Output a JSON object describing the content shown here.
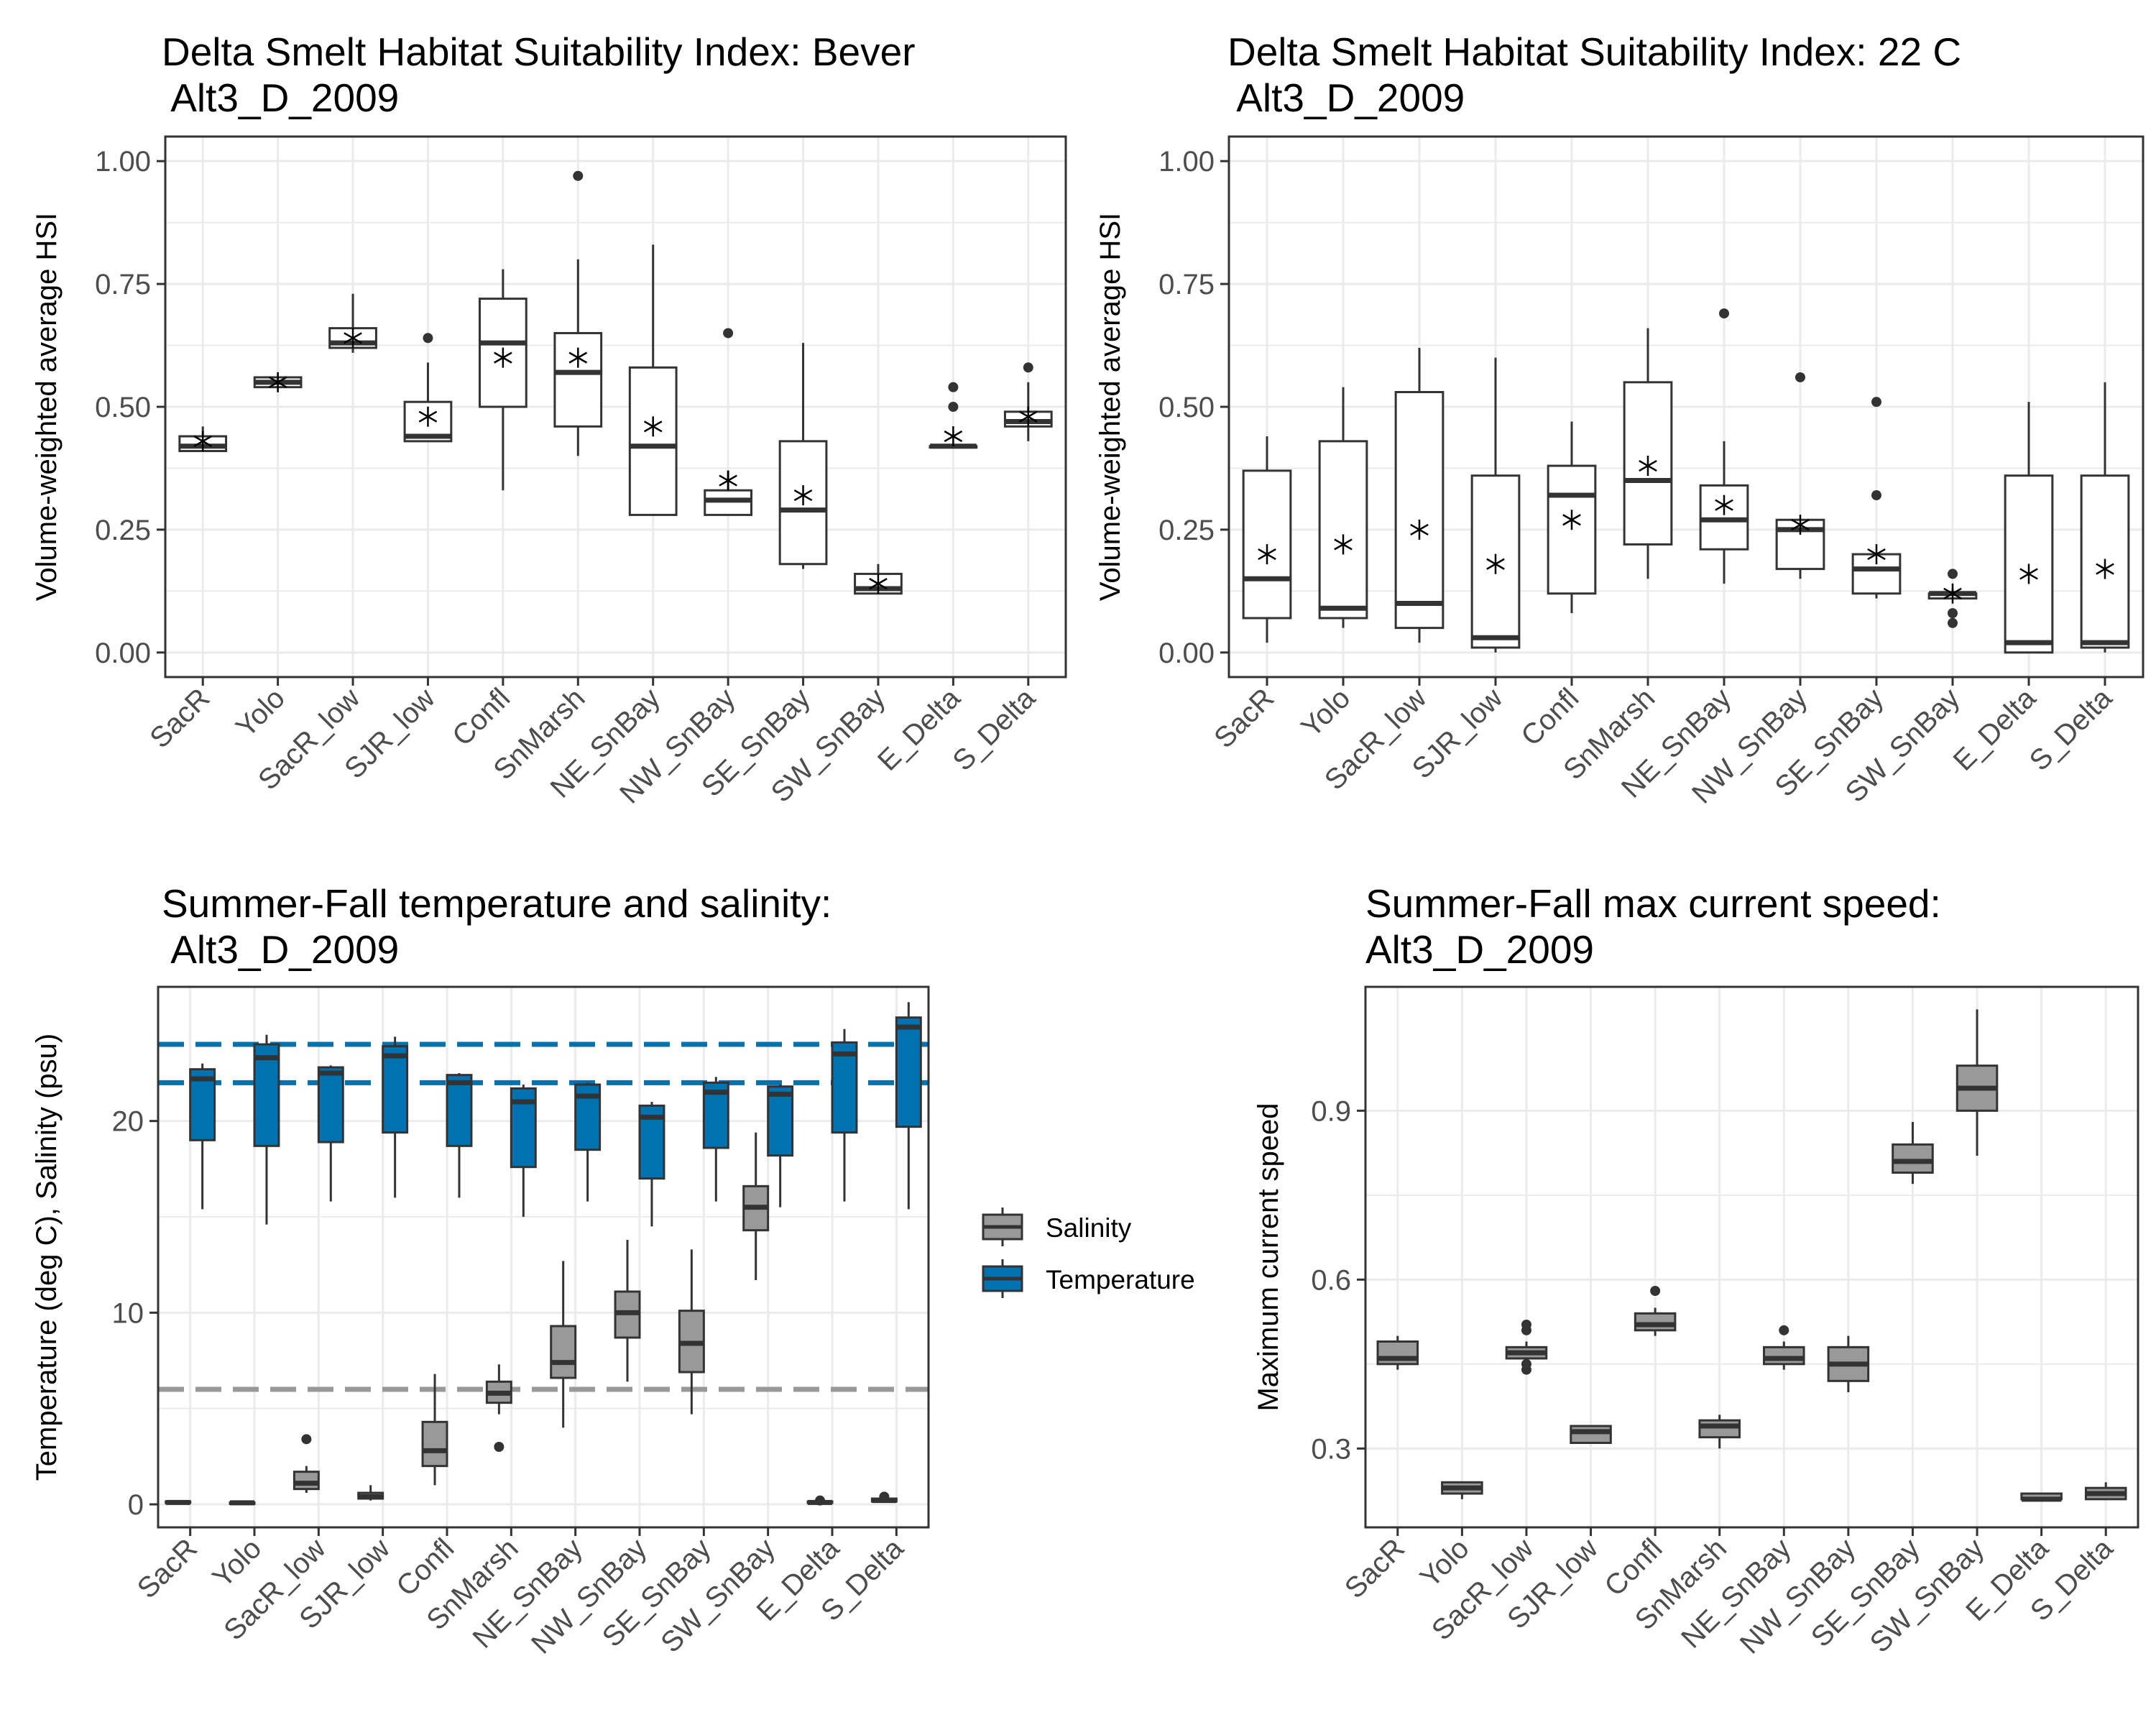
{
  "panels": {
    "p1": {
      "title_line1": "Delta Smelt Habitat Suitability Index: Bever",
      "title_line2": " Alt3_D_2009"
    },
    "p2": {
      "title_line1": "Delta Smelt Habitat Suitability Index: 22 C",
      "title_line2": " Alt3_D_2009"
    },
    "p3": {
      "title_line1": "Summer-Fall temperature and salinity:",
      "title_line2": " Alt3_D_2009"
    },
    "p4": {
      "title_line1": "Summer-Fall max current speed:",
      "title_line2": "Alt3_D_2009"
    }
  },
  "legend": {
    "salinity": "Salinity",
    "temperature": "Temperature"
  },
  "colors": {
    "temperature": "#0072B2",
    "salinity": "#999999",
    "grid": "#EBEBEB",
    "box_outline": "#333333"
  },
  "chart_data": [
    {
      "type": "box",
      "title": "Delta Smelt Habitat Suitability Index: Bever\n Alt3_D_2009",
      "ylabel": "Volume-weighted average HSI",
      "ylim": [
        -0.05,
        1.05
      ],
      "yticks": [
        "0.00",
        "0.25",
        "0.50",
        "0.75",
        "1.00"
      ],
      "categories": [
        "SacR",
        "Yolo",
        "SacR_low",
        "SJR_low",
        "Confl",
        "SnMarsh",
        "NE_SnBay",
        "NW_SnBay",
        "SE_SnBay",
        "SW_SnBay",
        "E_Delta",
        "S_Delta"
      ],
      "boxes": [
        {
          "lo": 0.41,
          "q1": 0.41,
          "med": 0.42,
          "q3": 0.44,
          "hi": 0.46,
          "mean": 0.43,
          "out": []
        },
        {
          "lo": 0.54,
          "q1": 0.54,
          "med": 0.55,
          "q3": 0.56,
          "hi": 0.56,
          "mean": 0.55,
          "out": []
        },
        {
          "lo": 0.61,
          "q1": 0.62,
          "med": 0.63,
          "q3": 0.66,
          "hi": 0.73,
          "mean": 0.64,
          "out": []
        },
        {
          "lo": 0.43,
          "q1": 0.43,
          "med": 0.44,
          "q3": 0.51,
          "hi": 0.59,
          "mean": 0.48,
          "out": [
            0.64
          ]
        },
        {
          "lo": 0.33,
          "q1": 0.5,
          "med": 0.63,
          "q3": 0.72,
          "hi": 0.78,
          "mean": 0.6,
          "out": []
        },
        {
          "lo": 0.4,
          "q1": 0.46,
          "med": 0.57,
          "q3": 0.65,
          "hi": 0.8,
          "mean": 0.6,
          "out": [
            0.97
          ]
        },
        {
          "lo": 0.28,
          "q1": 0.28,
          "med": 0.42,
          "q3": 0.58,
          "hi": 0.83,
          "mean": 0.46,
          "out": []
        },
        {
          "lo": 0.28,
          "q1": 0.28,
          "med": 0.31,
          "q3": 0.33,
          "hi": 0.37,
          "mean": 0.35,
          "out": [
            0.65
          ]
        },
        {
          "lo": 0.17,
          "q1": 0.18,
          "med": 0.29,
          "q3": 0.43,
          "hi": 0.63,
          "mean": 0.32,
          "out": []
        },
        {
          "lo": 0.12,
          "q1": 0.12,
          "med": 0.13,
          "q3": 0.16,
          "hi": 0.18,
          "mean": 0.14,
          "out": []
        },
        {
          "lo": 0.42,
          "q1": 0.42,
          "med": 0.42,
          "q3": 0.42,
          "hi": 0.42,
          "mean": 0.44,
          "out": [
            0.5,
            0.54
          ]
        },
        {
          "lo": 0.43,
          "q1": 0.46,
          "med": 0.47,
          "q3": 0.49,
          "hi": 0.55,
          "mean": 0.48,
          "out": [
            0.58
          ]
        }
      ]
    },
    {
      "type": "box",
      "title": "Delta Smelt Habitat Suitability Index: 22 C\n Alt3_D_2009",
      "ylabel": "Volume-weighted average HSI",
      "ylim": [
        -0.05,
        1.05
      ],
      "yticks": [
        "0.00",
        "0.25",
        "0.50",
        "0.75",
        "1.00"
      ],
      "categories": [
        "SacR",
        "Yolo",
        "SacR_low",
        "SJR_low",
        "Confl",
        "SnMarsh",
        "NE_SnBay",
        "NW_SnBay",
        "SE_SnBay",
        "SW_SnBay",
        "E_Delta",
        "S_Delta"
      ],
      "boxes": [
        {
          "lo": 0.02,
          "q1": 0.07,
          "med": 0.15,
          "q3": 0.37,
          "hi": 0.44,
          "mean": 0.2,
          "out": []
        },
        {
          "lo": 0.05,
          "q1": 0.07,
          "med": 0.09,
          "q3": 0.43,
          "hi": 0.54,
          "mean": 0.22,
          "out": []
        },
        {
          "lo": 0.02,
          "q1": 0.05,
          "med": 0.1,
          "q3": 0.53,
          "hi": 0.62,
          "mean": 0.25,
          "out": []
        },
        {
          "lo": 0.0,
          "q1": 0.01,
          "med": 0.03,
          "q3": 0.36,
          "hi": 0.6,
          "mean": 0.18,
          "out": []
        },
        {
          "lo": 0.08,
          "q1": 0.12,
          "med": 0.32,
          "q3": 0.38,
          "hi": 0.47,
          "mean": 0.27,
          "out": []
        },
        {
          "lo": 0.15,
          "q1": 0.22,
          "med": 0.35,
          "q3": 0.55,
          "hi": 0.66,
          "mean": 0.38,
          "out": []
        },
        {
          "lo": 0.14,
          "q1": 0.21,
          "med": 0.27,
          "q3": 0.34,
          "hi": 0.43,
          "mean": 0.3,
          "out": [
            0.69
          ]
        },
        {
          "lo": 0.15,
          "q1": 0.17,
          "med": 0.25,
          "q3": 0.27,
          "hi": 0.27,
          "mean": 0.26,
          "out": [
            0.56
          ]
        },
        {
          "lo": 0.11,
          "q1": 0.12,
          "med": 0.17,
          "q3": 0.2,
          "hi": 0.2,
          "mean": 0.2,
          "out": [
            0.32,
            0.51
          ]
        },
        {
          "lo": 0.11,
          "q1": 0.11,
          "med": 0.12,
          "q3": 0.12,
          "hi": 0.13,
          "mean": 0.12,
          "out": [
            0.06,
            0.08,
            0.16
          ]
        },
        {
          "lo": 0.0,
          "q1": 0.0,
          "med": 0.02,
          "q3": 0.36,
          "hi": 0.51,
          "mean": 0.16,
          "out": []
        },
        {
          "lo": 0.0,
          "q1": 0.01,
          "med": 0.02,
          "q3": 0.36,
          "hi": 0.55,
          "mean": 0.17,
          "out": []
        }
      ]
    },
    {
      "type": "box",
      "title": "Summer-Fall temperature and salinity:\n Alt3_D_2009",
      "ylabel": "Temperature (deg C), Salinity (psu)",
      "ylim": [
        -1.2,
        27.0
      ],
      "yticks": [
        "0",
        "10",
        "20"
      ],
      "categories": [
        "SacR",
        "Yolo",
        "SacR_low",
        "SJR_low",
        "Confl",
        "SnMarsh",
        "NE_SnBay",
        "NW_SnBay",
        "SE_SnBay",
        "SW_SnBay",
        "E_Delta",
        "S_Delta"
      ],
      "reference_lines": [
        {
          "y": 24,
          "color": "temperature"
        },
        {
          "y": 22,
          "color": "temperature"
        },
        {
          "y": 6,
          "color": "salinity"
        }
      ],
      "series": [
        {
          "name": "Salinity",
          "boxes": [
            {
              "lo": 0.05,
              "q1": 0.08,
              "med": 0.1,
              "q3": 0.15,
              "hi": 0.2,
              "out": []
            },
            {
              "lo": 0.05,
              "q1": 0.06,
              "med": 0.08,
              "q3": 0.1,
              "hi": 0.12,
              "out": []
            },
            {
              "lo": 0.6,
              "q1": 0.8,
              "med": 1.1,
              "q3": 1.7,
              "hi": 2.0,
              "out": [
                3.4
              ]
            },
            {
              "lo": 0.2,
              "q1": 0.3,
              "med": 0.4,
              "q3": 0.6,
              "hi": 1.0,
              "out": []
            },
            {
              "lo": 1.0,
              "q1": 2.0,
              "med": 2.8,
              "q3": 4.3,
              "hi": 6.8,
              "out": []
            },
            {
              "lo": 4.7,
              "q1": 5.3,
              "med": 5.8,
              "q3": 6.4,
              "hi": 7.3,
              "out": [
                3.0
              ]
            },
            {
              "lo": 4.0,
              "q1": 6.6,
              "med": 7.4,
              "q3": 9.3,
              "hi": 12.7,
              "out": []
            },
            {
              "lo": 6.4,
              "q1": 8.7,
              "med": 10.0,
              "q3": 11.1,
              "hi": 13.8,
              "out": []
            },
            {
              "lo": 4.7,
              "q1": 6.9,
              "med": 8.4,
              "q3": 10.1,
              "hi": 13.3,
              "out": []
            },
            {
              "lo": 11.7,
              "q1": 14.3,
              "med": 15.5,
              "q3": 16.6,
              "hi": 19.4,
              "out": []
            },
            {
              "lo": 0.05,
              "q1": 0.08,
              "med": 0.1,
              "q3": 0.15,
              "hi": 0.2,
              "out": [
                0.2
              ]
            },
            {
              "lo": 0.1,
              "q1": 0.15,
              "med": 0.2,
              "q3": 0.3,
              "hi": 0.4,
              "out": [
                0.4
              ]
            }
          ]
        },
        {
          "name": "Temperature",
          "boxes": [
            {
              "lo": 15.4,
              "q1": 19.0,
              "med": 22.2,
              "q3": 22.7,
              "hi": 23.0,
              "out": []
            },
            {
              "lo": 14.6,
              "q1": 18.7,
              "med": 23.3,
              "q3": 24.0,
              "hi": 24.5,
              "out": []
            },
            {
              "lo": 15.8,
              "q1": 18.9,
              "med": 22.5,
              "q3": 22.8,
              "hi": 22.9,
              "out": []
            },
            {
              "lo": 16.0,
              "q1": 19.4,
              "med": 23.4,
              "q3": 23.9,
              "hi": 24.4,
              "out": []
            },
            {
              "lo": 16.0,
              "q1": 18.7,
              "med": 22.0,
              "q3": 22.4,
              "hi": 22.5,
              "out": []
            },
            {
              "lo": 15.0,
              "q1": 17.6,
              "med": 21.0,
              "q3": 21.7,
              "hi": 21.9,
              "out": []
            },
            {
              "lo": 15.8,
              "q1": 18.5,
              "med": 21.3,
              "q3": 21.9,
              "hi": 22.0,
              "out": []
            },
            {
              "lo": 14.5,
              "q1": 17.0,
              "med": 20.2,
              "q3": 20.8,
              "hi": 21.0,
              "out": []
            },
            {
              "lo": 15.8,
              "q1": 18.6,
              "med": 21.5,
              "q3": 22.0,
              "hi": 22.3,
              "out": []
            },
            {
              "lo": 15.5,
              "q1": 18.2,
              "med": 21.4,
              "q3": 21.8,
              "hi": 21.9,
              "out": []
            },
            {
              "lo": 15.8,
              "q1": 19.4,
              "med": 23.5,
              "q3": 24.1,
              "hi": 24.8,
              "out": []
            },
            {
              "lo": 15.4,
              "q1": 19.7,
              "med": 24.9,
              "q3": 25.4,
              "hi": 26.2,
              "out": []
            }
          ]
        }
      ]
    },
    {
      "type": "box",
      "title": "Summer-Fall max current speed:\nAlt3_D_2009",
      "ylabel": "Maximum current speed",
      "ylim": [
        0.16,
        1.12
      ],
      "yticks": [
        "0.3",
        "0.6",
        "0.9"
      ],
      "categories": [
        "SacR",
        "Yolo",
        "SacR_low",
        "SJR_low",
        "Confl",
        "SnMarsh",
        "NE_SnBay",
        "NW_SnBay",
        "SE_SnBay",
        "SW_SnBay",
        "E_Delta",
        "S_Delta"
      ],
      "boxes": [
        {
          "lo": 0.44,
          "q1": 0.45,
          "med": 0.46,
          "q3": 0.49,
          "hi": 0.5,
          "out": []
        },
        {
          "lo": 0.21,
          "q1": 0.22,
          "med": 0.23,
          "q3": 0.24,
          "hi": 0.24,
          "out": []
        },
        {
          "lo": 0.46,
          "q1": 0.46,
          "med": 0.47,
          "q3": 0.48,
          "hi": 0.49,
          "out": [
            0.44,
            0.45,
            0.51,
            0.52
          ]
        },
        {
          "lo": 0.31,
          "q1": 0.31,
          "med": 0.33,
          "q3": 0.34,
          "hi": 0.34,
          "out": []
        },
        {
          "lo": 0.5,
          "q1": 0.51,
          "med": 0.52,
          "q3": 0.54,
          "hi": 0.55,
          "out": [
            0.58
          ]
        },
        {
          "lo": 0.3,
          "q1": 0.32,
          "med": 0.34,
          "q3": 0.35,
          "hi": 0.36,
          "out": []
        },
        {
          "lo": 0.44,
          "q1": 0.45,
          "med": 0.46,
          "q3": 0.48,
          "hi": 0.49,
          "out": [
            0.51
          ]
        },
        {
          "lo": 0.4,
          "q1": 0.42,
          "med": 0.45,
          "q3": 0.48,
          "hi": 0.5,
          "out": []
        },
        {
          "lo": 0.77,
          "q1": 0.79,
          "med": 0.81,
          "q3": 0.84,
          "hi": 0.88,
          "out": []
        },
        {
          "lo": 0.82,
          "q1": 0.9,
          "med": 0.94,
          "q3": 0.98,
          "hi": 1.08,
          "out": []
        },
        {
          "lo": 0.21,
          "q1": 0.21,
          "med": 0.21,
          "q3": 0.22,
          "hi": 0.22,
          "out": []
        },
        {
          "lo": 0.21,
          "q1": 0.21,
          "med": 0.22,
          "q3": 0.23,
          "hi": 0.24,
          "out": []
        }
      ]
    }
  ]
}
